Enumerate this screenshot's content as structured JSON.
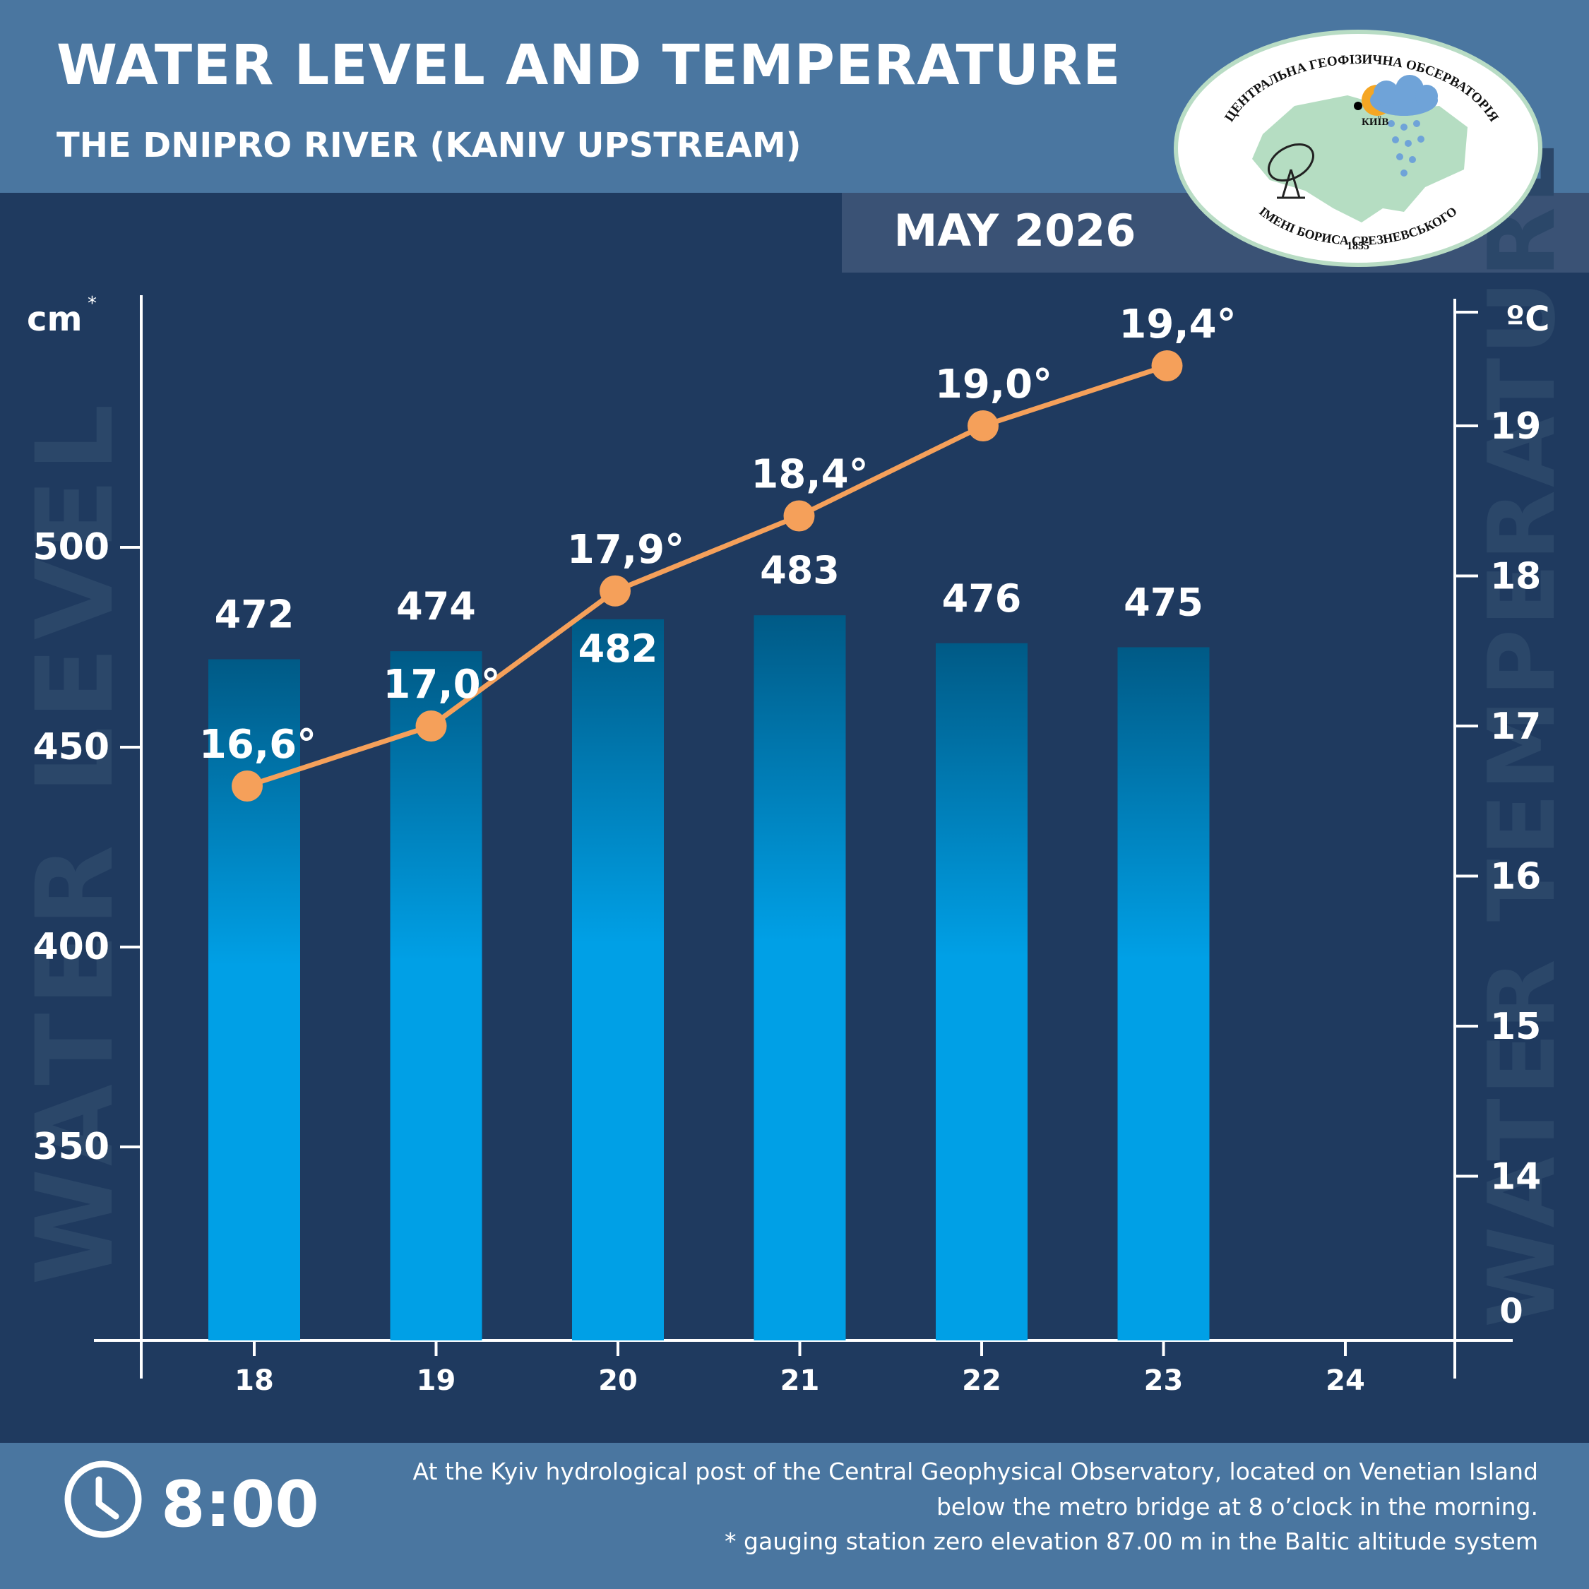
{
  "header": {
    "title": "WATER LEVEL AND TEMPERATURE",
    "subtitle": "THE DNIPRO RIVER (KANIV UPSTREAM)",
    "month": "MAY 2026"
  },
  "logo": {
    "top_text": "ЦЕНТРАЛЬНА ГЕОФІЗИЧНА ОБСЕРВАТОРІЯ",
    "bottom_text": "ІМЕНІ БОРИСА СРЕЗНЕВСЬКОГО",
    "year": "1855",
    "city": "КИЇВ"
  },
  "colors": {
    "background": "#1f3a5f",
    "header": "#4a76a0",
    "bar_top": "#005a86",
    "bar_bottom": "#00a0e6",
    "line": "#f5a05a",
    "text": "#ffffff",
    "watermark": "#2b4769"
  },
  "chart_data": {
    "type": "bar",
    "categories": [
      "18",
      "19",
      "20",
      "21",
      "22",
      "23",
      "24"
    ],
    "series": [
      {
        "type": "bar",
        "axis": "left",
        "values": [
          472,
          474,
          482,
          483,
          476,
          475,
          null
        ]
      },
      {
        "type": "line",
        "axis": "right",
        "values": [
          16.6,
          17.0,
          17.9,
          18.4,
          19.0,
          19.4,
          null
        ],
        "labels": [
          "16,6°",
          "17,0°",
          "17,9°",
          "18,4°",
          "19,0°",
          "19,4°",
          ""
        ]
      }
    ],
    "left_axis": {
      "unit": "cm",
      "unit_mark": "*",
      "ticks": [
        350,
        400,
        450,
        500
      ],
      "watermark": "WATER LEVEL"
    },
    "right_axis": {
      "unit": "ºC",
      "ticks": [
        14,
        15,
        16,
        17,
        18,
        19
      ],
      "bottom_label": "0",
      "watermark": "WATER TEMPERATURE"
    },
    "grid": false,
    "legend": "none"
  },
  "footer": {
    "time": "8:00",
    "note_lines": [
      "At the Kyiv hydrological post of the Central Geophysical Observatory, located on Venetian Island",
      "below the metro bridge  at 8 o’clock in the morning.",
      "* gauging station zero elevation 87.00 m in the Baltic altitude system"
    ]
  }
}
